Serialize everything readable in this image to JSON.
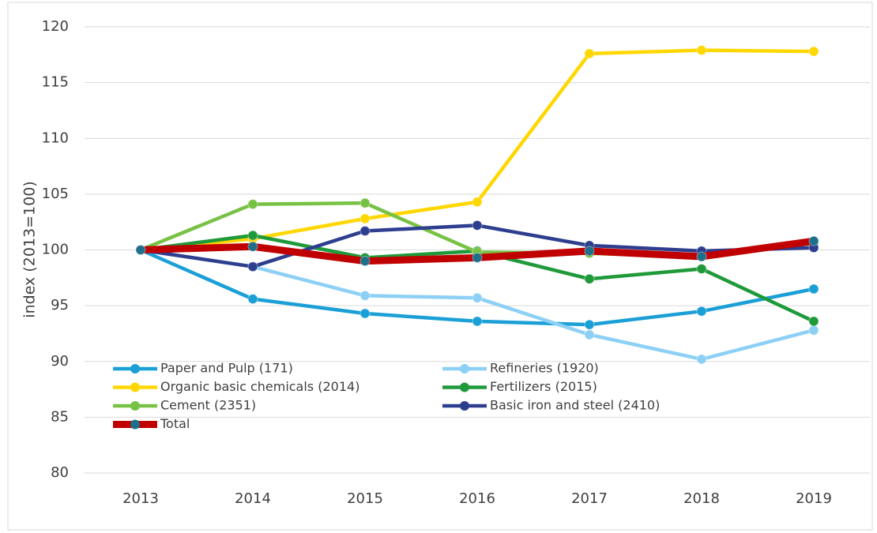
{
  "chart_data": {
    "type": "line",
    "y_axis_label": "index (2013=100)",
    "categories": [
      "2013",
      "2014",
      "2015",
      "2016",
      "2017",
      "2018",
      "2019"
    ],
    "ylim": [
      80,
      120
    ],
    "yticks": [
      80,
      85,
      90,
      95,
      100,
      105,
      110,
      115,
      120
    ],
    "grid": true,
    "legend": "lower left",
    "series": [
      {
        "name": "Paper and Pulp (171)",
        "color": "#1a9fd6",
        "values": [
          100,
          95.6,
          94.3,
          93.6,
          93.3,
          94.5,
          96.5
        ]
      },
      {
        "name": "Refineries (1920)",
        "color": "#8dd0f5",
        "values": [
          100,
          98.5,
          95.9,
          95.7,
          92.4,
          90.2,
          92.8
        ]
      },
      {
        "name": "Organic basic chemicals (2014)",
        "color": "#ffd700",
        "values": [
          100,
          101.0,
          102.8,
          104.3,
          117.6,
          117.9,
          117.8
        ]
      },
      {
        "name": "Fertilizers (2015)",
        "color": "#1f9a3a",
        "values": [
          100,
          101.3,
          99.3,
          99.9,
          97.4,
          98.3,
          93.6
        ]
      },
      {
        "name": "Cement (2351)",
        "color": "#77c244",
        "values": [
          100,
          104.1,
          104.2,
          99.8,
          99.7,
          99.4,
          100.6
        ]
      },
      {
        "name": "Basic iron and steel (2410)",
        "color": "#2e3e8f",
        "values": [
          100,
          98.5,
          101.7,
          102.2,
          100.4,
          99.9,
          100.2
        ]
      },
      {
        "name": "Total",
        "color": "#c00000",
        "marker_color": "#1f6f8b",
        "values": [
          100,
          100.3,
          99.0,
          99.3,
          99.9,
          99.4,
          100.8
        ]
      }
    ]
  }
}
